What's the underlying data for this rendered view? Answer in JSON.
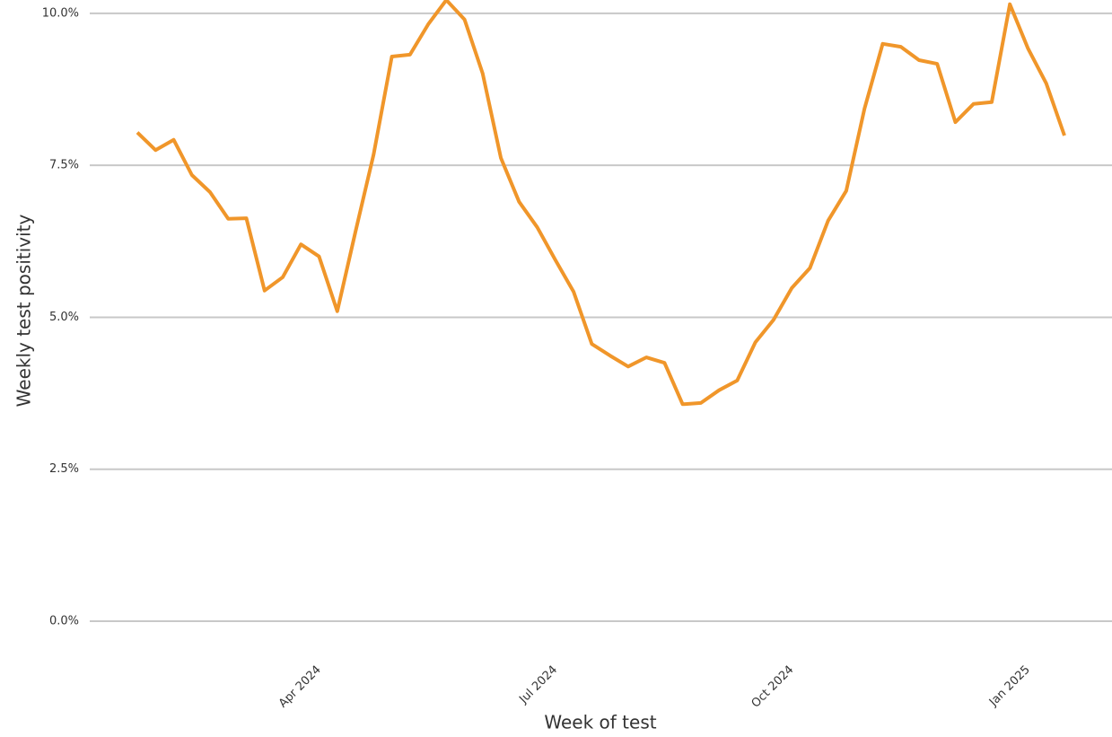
{
  "chart_data": {
    "type": "line",
    "x_label": "Week of test",
    "y_label": "Weekly test positivity",
    "categories": [
      null,
      null,
      null,
      null,
      null,
      null,
      null,
      null,
      null,
      null,
      "Apr 2024",
      null,
      null,
      null,
      null,
      null,
      null,
      null,
      null,
      null,
      null,
      null,
      null,
      "Jul 2024",
      null,
      null,
      null,
      null,
      null,
      null,
      null,
      null,
      null,
      null,
      null,
      null,
      "Oct 2024",
      null,
      null,
      null,
      null,
      null,
      null,
      null,
      null,
      null,
      null,
      null,
      null,
      "Jan 2025",
      null,
      null
    ],
    "series": [
      {
        "name": "Weekly test positivity",
        "color": "#f0962a",
        "values": [
          8.04,
          7.75,
          7.92,
          7.34,
          7.06,
          6.62,
          6.63,
          5.44,
          5.66,
          6.2,
          6.0,
          5.1,
          6.41,
          7.68,
          9.29,
          9.32,
          9.82,
          10.22,
          9.9,
          9.01,
          7.62,
          6.9,
          6.48,
          5.94,
          5.42,
          4.56,
          4.37,
          4.19,
          4.34,
          4.25,
          3.57,
          3.59,
          3.8,
          3.96,
          4.59,
          4.96,
          5.48,
          5.81,
          6.59,
          7.08,
          8.43,
          9.5,
          9.45,
          9.23,
          9.17,
          8.21,
          8.51,
          8.54,
          10.15,
          9.42,
          8.85,
          7.99
        ]
      }
    ],
    "ylim": [
      0,
      10.22
    ],
    "yticks": [
      {
        "value": 0,
        "label": "0.0%"
      },
      {
        "value": 2.5,
        "label": "2.5%"
      },
      {
        "value": 5,
        "label": "5.0%"
      },
      {
        "value": 7.5,
        "label": "7.5%"
      },
      {
        "value": 10,
        "label": "10.0%"
      }
    ],
    "grid": true
  }
}
